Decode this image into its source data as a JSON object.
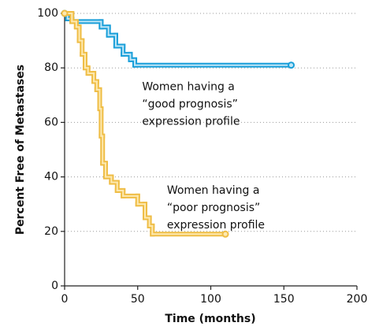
{
  "chart_data": {
    "type": "step",
    "y_label": "Percent Free of Metastases",
    "x_label": "Time (months)",
    "xlim": [
      0,
      200
    ],
    "xticks": [
      0,
      50,
      100,
      150,
      200
    ],
    "ylim": [
      0,
      100
    ],
    "yticks": [
      0,
      20,
      40,
      60,
      80,
      100
    ],
    "grid": true,
    "series": [
      {
        "name": "good prognosis",
        "color": "#1a9fd9",
        "inner_color": "#bfe6f7",
        "x": [
          0,
          2,
          5,
          25,
          30,
          35,
          40,
          45,
          48,
          155
        ],
        "values": [
          100,
          98,
          97,
          95,
          92,
          88,
          85,
          83,
          81,
          81
        ]
      },
      {
        "name": "poor prognosis",
        "color": "#efbd45",
        "inner_color": "#fde9b0",
        "x": [
          0,
          5,
          8,
          10,
          12,
          14,
          16,
          20,
          22,
          24,
          25,
          26,
          28,
          32,
          36,
          40,
          50,
          55,
          58,
          60,
          110
        ],
        "values": [
          100,
          97,
          95,
          90,
          85,
          80,
          78,
          75,
          72,
          65,
          55,
          45,
          40,
          38,
          35,
          33,
          30,
          25,
          22,
          19,
          19
        ]
      }
    ],
    "annotations": [
      {
        "lines": [
          "Women having a",
          "“good prognosis”",
          "expression profile"
        ],
        "x": 53,
        "y": 73
      },
      {
        "lines": [
          "Women having a",
          "“poor prognosis”",
          "expression profile"
        ],
        "x": 70,
        "y": 35
      }
    ]
  }
}
